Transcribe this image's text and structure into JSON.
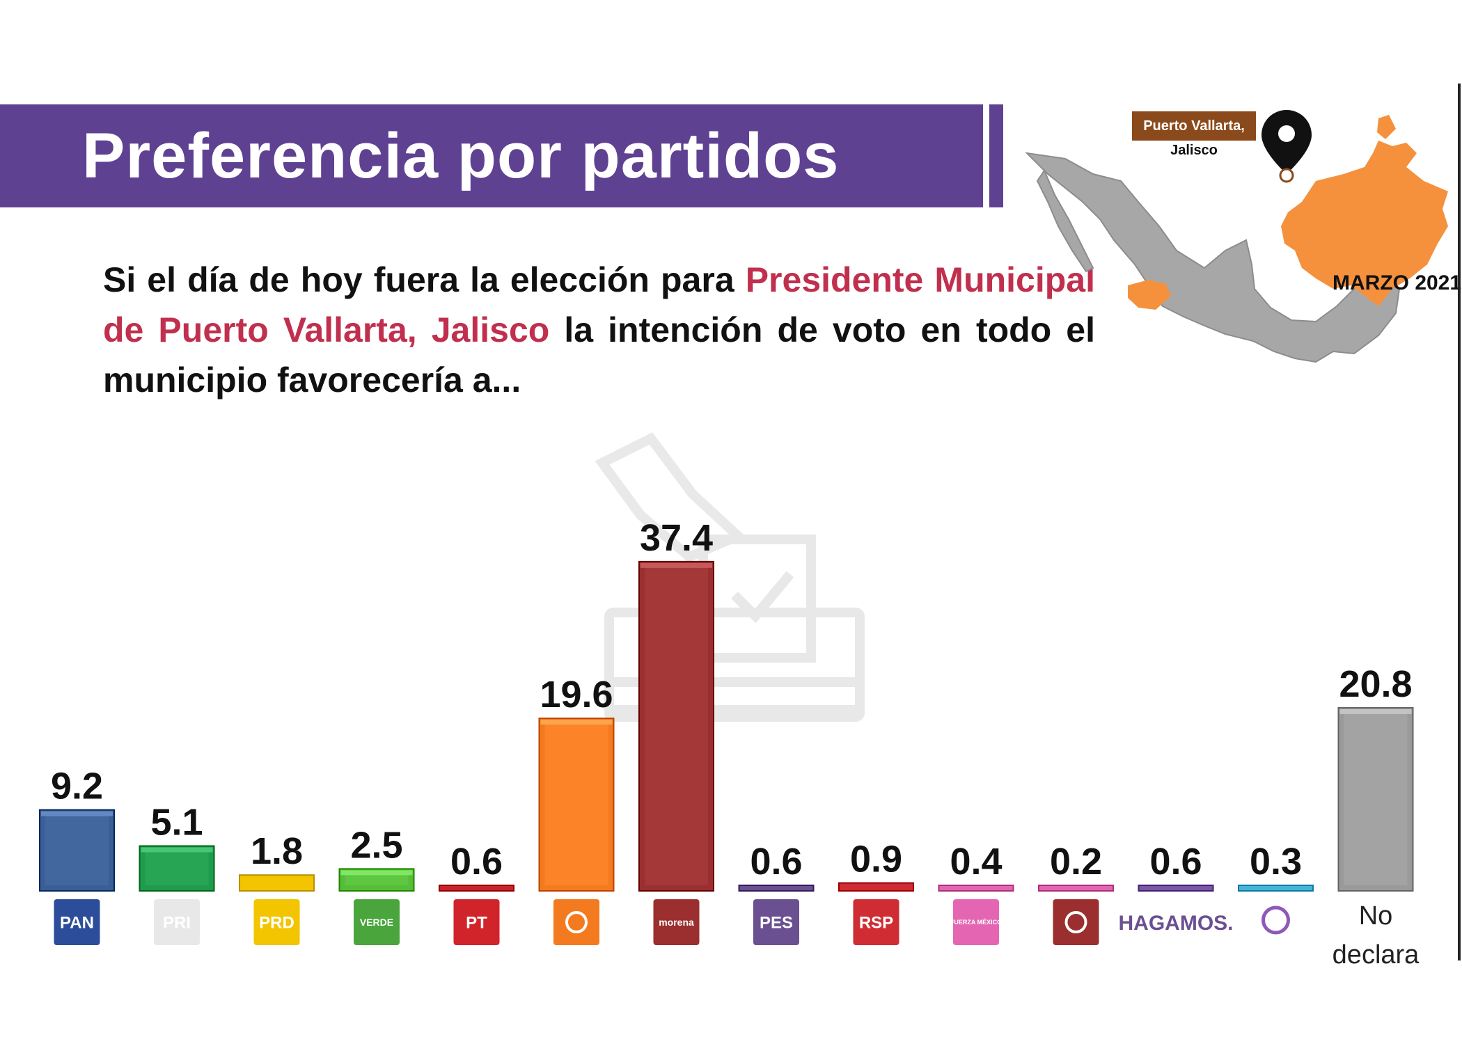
{
  "header": {
    "title": "Preferencia por partidos"
  },
  "question": {
    "part1": "Si el día de hoy fuera la elección para ",
    "highlight": "Presidente Municipal de Puerto Vallarta, Jalisco",
    "part2": " la intención de voto en todo el municipio favorecería a..."
  },
  "map": {
    "location_line1": "Puerto Vallarta,",
    "location_line2": "Jalisco",
    "date": "MARZO 2021"
  },
  "colors": {
    "banner": "#5f4192",
    "highlight": "#c0304e",
    "map_state": "#f5903d",
    "map_country": "#a7a7a7"
  },
  "chart_data": {
    "type": "bar",
    "categories": [
      "PAN",
      "PRI",
      "PRD",
      "VERDE",
      "PT",
      "MC",
      "morena",
      "PES",
      "RSP",
      "FUERZA MÉXICO",
      "Futuro",
      "HAGAMOS.",
      "Somos",
      "No declara"
    ],
    "values": [
      9.2,
      5.1,
      1.8,
      2.5,
      0.6,
      19.6,
      37.4,
      0.6,
      0.9,
      0.4,
      0.2,
      0.6,
      0.3,
      20.8
    ],
    "value_labels": [
      "9.2",
      "5.1",
      "1.8",
      "2.5",
      "0.6",
      "19.6",
      "37.4",
      "0.6",
      "0.9",
      "0.4",
      "0.2",
      "0.6",
      "0.3",
      "20.8"
    ],
    "bar_colors": [
      "#3a5e96",
      "#1f9b4c",
      "#f2c500",
      "#56bd38",
      "#c8232c",
      "#f47a1f",
      "#9b2f2f",
      "#6a4f91",
      "#cf2d33",
      "#e466b2",
      "#e466b2",
      "#7a56a7",
      "#45b4d8",
      "#9a9a9a"
    ],
    "logos": [
      {
        "icon": "pan-logo-icon",
        "text": "PAN",
        "bg": "#2b4d9a",
        "fg": "#ffffff"
      },
      {
        "icon": "pri-logo-icon",
        "text": "PRI",
        "bg": "#e8e8e8",
        "fg": "#1e8a47"
      },
      {
        "icon": "prd-logo-icon",
        "text": "PRD",
        "bg": "#f2c500",
        "fg": "#222222"
      },
      {
        "icon": "verde-logo-icon",
        "text": "VERDE",
        "bg": "#49a53c",
        "fg": "#ffffff"
      },
      {
        "icon": "pt-logo-icon",
        "text": "PT",
        "bg": "#d1232a",
        "fg": "#f2c500"
      },
      {
        "icon": "mc-logo-icon",
        "text": "",
        "bg": "#f47a1f",
        "fg": "#ffffff"
      },
      {
        "icon": "morena-logo-icon",
        "text": "morena",
        "bg": "#9b2f2f",
        "fg": "#ffffff"
      },
      {
        "icon": "pes-logo-icon",
        "text": "PES",
        "bg": "#6a4f91",
        "fg": "#ffffff"
      },
      {
        "icon": "rsp-logo-icon",
        "text": "RSP",
        "bg": "#cf2d33",
        "fg": "#ffffff"
      },
      {
        "icon": "fuerza-mexico-logo-icon",
        "text": "FUERZA MÉXICO",
        "bg": "#e466b2",
        "fg": "#ffffff"
      },
      {
        "icon": "futuro-logo-icon",
        "text": "",
        "bg": "#9b2f2f",
        "fg": "#ffffff"
      },
      {
        "icon": "hagamos-logo-icon",
        "text": "HAGAMOS.",
        "bg": "none",
        "fg": "#6a4f91"
      },
      {
        "icon": "somos-logo-icon",
        "text": "",
        "bg": "none",
        "fg": "#8c5ab8"
      },
      {
        "icon": "",
        "text": "No declara",
        "bg": "none",
        "fg": "#222222"
      }
    ],
    "title": "",
    "xlabel": "",
    "ylabel": "",
    "ylim": [
      0,
      40
    ],
    "grid": false,
    "legend": "none"
  }
}
